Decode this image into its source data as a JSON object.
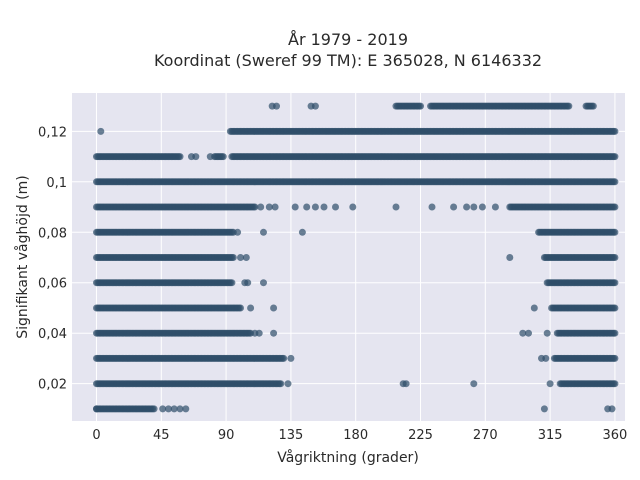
{
  "chart_data": {
    "type": "scatter",
    "title": "År 1979 - 2019",
    "subtitle": "Koordinat (Sweref 99 TM): E 365028, N 6146332",
    "xlabel": "Vågriktning (grader)",
    "ylabel": "Signifikant våghöjd (m)",
    "xlim": [
      -17,
      367
    ],
    "ylim": [
      0.0052,
      0.1352
    ],
    "x_ticks": [
      0,
      45,
      90,
      135,
      180,
      225,
      270,
      315,
      360
    ],
    "x_tick_labels": [
      "0",
      "45",
      "90",
      "135",
      "180",
      "225",
      "270",
      "315",
      "360"
    ],
    "y_ticks": [
      0.02,
      0.04,
      0.06,
      0.08,
      0.1,
      0.12
    ],
    "y_tick_labels": [
      "0,02",
      "0,04",
      "0,06",
      "0,08",
      "0,1",
      "0,12"
    ],
    "grid": true,
    "marker_color": "#2f4f6a",
    "background_color": "#e5e5f0",
    "bands": [
      {
        "y": 0.13,
        "ranges": [
          [
            208,
            225
          ],
          [
            232,
            328
          ],
          [
            340,
            345
          ]
        ]
      },
      {
        "y": 0.12,
        "ranges": [
          [
            93,
            360
          ]
        ]
      },
      {
        "y": 0.11,
        "ranges": [
          [
            0,
            57
          ],
          [
            82,
            88
          ],
          [
            94,
            360
          ]
        ]
      },
      {
        "y": 0.1,
        "ranges": [
          [
            0,
            360
          ]
        ]
      },
      {
        "y": 0.09,
        "ranges": [
          [
            0,
            110
          ],
          [
            287,
            360
          ]
        ]
      },
      {
        "y": 0.08,
        "ranges": [
          [
            0,
            95
          ],
          [
            307,
            360
          ]
        ]
      },
      {
        "y": 0.07,
        "ranges": [
          [
            0,
            95
          ],
          [
            311,
            360
          ]
        ]
      },
      {
        "y": 0.06,
        "ranges": [
          [
            0,
            94
          ],
          [
            313,
            360
          ]
        ]
      },
      {
        "y": 0.05,
        "ranges": [
          [
            0,
            100
          ],
          [
            316,
            360
          ]
        ]
      },
      {
        "y": 0.04,
        "ranges": [
          [
            0,
            107
          ],
          [
            320,
            360
          ]
        ]
      },
      {
        "y": 0.03,
        "ranges": [
          [
            0,
            130
          ],
          [
            318,
            360
          ]
        ]
      },
      {
        "y": 0.02,
        "ranges": [
          [
            0,
            128
          ],
          [
            322,
            360
          ]
        ]
      },
      {
        "y": 0.01,
        "ranges": [
          [
            0,
            40
          ]
        ]
      }
    ],
    "points": [
      [
        122,
        0.13
      ],
      [
        125,
        0.13
      ],
      [
        149,
        0.13
      ],
      [
        152,
        0.13
      ],
      [
        3,
        0.12
      ],
      [
        58,
        0.11
      ],
      [
        66,
        0.11
      ],
      [
        69,
        0.11
      ],
      [
        79,
        0.11
      ],
      [
        114,
        0.09
      ],
      [
        120,
        0.09
      ],
      [
        124,
        0.09
      ],
      [
        138,
        0.09
      ],
      [
        146,
        0.09
      ],
      [
        152,
        0.09
      ],
      [
        158,
        0.09
      ],
      [
        166,
        0.09
      ],
      [
        178,
        0.09
      ],
      [
        208,
        0.09
      ],
      [
        233,
        0.09
      ],
      [
        248,
        0.09
      ],
      [
        257,
        0.09
      ],
      [
        262,
        0.09
      ],
      [
        268,
        0.09
      ],
      [
        277,
        0.09
      ],
      [
        98,
        0.08
      ],
      [
        116,
        0.08
      ],
      [
        143,
        0.08
      ],
      [
        100,
        0.07
      ],
      [
        104,
        0.07
      ],
      [
        287,
        0.07
      ],
      [
        103,
        0.06
      ],
      [
        105,
        0.06
      ],
      [
        116,
        0.06
      ],
      [
        107,
        0.05
      ],
      [
        123,
        0.05
      ],
      [
        304,
        0.05
      ],
      [
        110,
        0.04
      ],
      [
        113,
        0.04
      ],
      [
        123,
        0.04
      ],
      [
        296,
        0.04
      ],
      [
        300,
        0.04
      ],
      [
        313,
        0.04
      ],
      [
        135,
        0.03
      ],
      [
        309,
        0.03
      ],
      [
        312,
        0.03
      ],
      [
        133,
        0.02
      ],
      [
        213,
        0.02
      ],
      [
        215,
        0.02
      ],
      [
        262,
        0.02
      ],
      [
        315,
        0.02
      ],
      [
        0,
        0.01
      ],
      [
        46,
        0.01
      ],
      [
        50,
        0.01
      ],
      [
        54,
        0.01
      ],
      [
        58,
        0.01
      ],
      [
        62,
        0.01
      ],
      [
        311,
        0.01
      ],
      [
        355,
        0.01
      ],
      [
        358,
        0.01
      ]
    ]
  }
}
